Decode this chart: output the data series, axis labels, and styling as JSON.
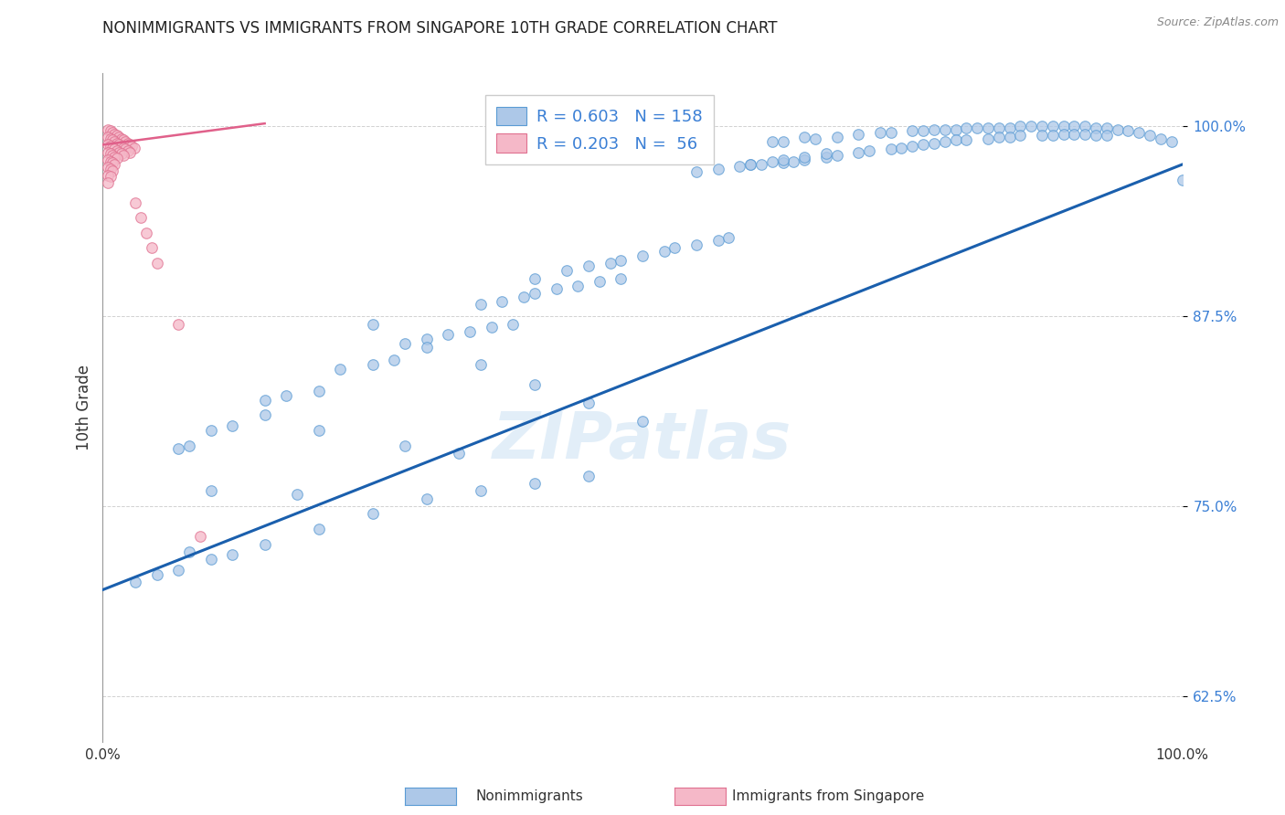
{
  "title": "NONIMMIGRANTS VS IMMIGRANTS FROM SINGAPORE 10TH GRADE CORRELATION CHART",
  "source": "Source: ZipAtlas.com",
  "ylabel": "10th Grade",
  "blue_R": 0.603,
  "blue_N": 158,
  "pink_R": 0.203,
  "pink_N": 56,
  "blue_color": "#adc8e8",
  "blue_line_color": "#1a5fad",
  "pink_color": "#f5b8c8",
  "pink_line_color": "#e0608a",
  "blue_edge_color": "#5a9bd4",
  "pink_edge_color": "#e07090",
  "watermark": "ZIPatlas",
  "xlim": [
    0.0,
    1.0
  ],
  "ylim": [
    0.595,
    1.035
  ],
  "yticks": [
    0.625,
    0.75,
    0.875,
    1.0
  ],
  "ytick_labels": [
    "62.5%",
    "75.0%",
    "87.5%",
    "100.0%"
  ],
  "blue_trend_x": [
    0.0,
    1.0
  ],
  "blue_trend_y": [
    0.695,
    0.975
  ],
  "pink_trend_x": [
    0.0,
    0.15
  ],
  "pink_trend_y": [
    0.988,
    1.002
  ],
  "title_fontsize": 12,
  "axis_label_fontsize": 12,
  "tick_fontsize": 11,
  "watermark_fontsize": 52,
  "marker_size": 70,
  "blue_x": [
    0.62,
    0.63,
    0.65,
    0.66,
    0.68,
    0.7,
    0.72,
    0.73,
    0.75,
    0.76,
    0.77,
    0.78,
    0.79,
    0.8,
    0.81,
    0.82,
    0.83,
    0.84,
    0.85,
    0.86,
    0.87,
    0.88,
    0.89,
    0.9,
    0.91,
    0.92,
    0.93,
    0.94,
    0.95,
    0.96,
    0.97,
    0.98,
    0.99,
    1.0,
    0.6,
    0.61,
    0.63,
    0.64,
    0.65,
    0.67,
    0.68,
    0.7,
    0.71,
    0.73,
    0.74,
    0.75,
    0.76,
    0.77,
    0.78,
    0.79,
    0.8,
    0.82,
    0.83,
    0.84,
    0.85,
    0.87,
    0.88,
    0.89,
    0.9,
    0.91,
    0.92,
    0.93,
    0.55,
    0.57,
    0.59,
    0.6,
    0.62,
    0.63,
    0.65,
    0.67,
    0.4,
    0.43,
    0.45,
    0.47,
    0.48,
    0.5,
    0.52,
    0.53,
    0.55,
    0.57,
    0.58,
    0.35,
    0.37,
    0.39,
    0.4,
    0.42,
    0.44,
    0.46,
    0.48,
    0.28,
    0.3,
    0.32,
    0.34,
    0.36,
    0.38,
    0.22,
    0.25,
    0.27,
    0.15,
    0.17,
    0.2,
    0.1,
    0.12,
    0.07,
    0.08,
    0.25,
    0.3,
    0.35,
    0.4,
    0.45,
    0.5,
    0.15,
    0.2,
    0.28,
    0.33,
    0.1,
    0.18,
    0.08,
    0.12,
    0.03,
    0.05,
    0.07,
    0.1,
    0.15,
    0.2,
    0.25,
    0.3,
    0.35,
    0.4,
    0.45
  ],
  "blue_y": [
    0.99,
    0.99,
    0.993,
    0.992,
    0.993,
    0.995,
    0.996,
    0.996,
    0.997,
    0.997,
    0.998,
    0.998,
    0.998,
    0.999,
    0.999,
    0.999,
    0.999,
    0.999,
    1.0,
    1.0,
    1.0,
    1.0,
    1.0,
    1.0,
    1.0,
    0.999,
    0.999,
    0.998,
    0.997,
    0.996,
    0.994,
    0.992,
    0.99,
    0.965,
    0.975,
    0.975,
    0.976,
    0.977,
    0.978,
    0.98,
    0.981,
    0.983,
    0.984,
    0.985,
    0.986,
    0.987,
    0.988,
    0.989,
    0.99,
    0.991,
    0.991,
    0.992,
    0.993,
    0.993,
    0.994,
    0.994,
    0.994,
    0.995,
    0.995,
    0.995,
    0.994,
    0.994,
    0.97,
    0.972,
    0.974,
    0.975,
    0.977,
    0.978,
    0.98,
    0.982,
    0.9,
    0.905,
    0.908,
    0.91,
    0.912,
    0.915,
    0.918,
    0.92,
    0.922,
    0.925,
    0.927,
    0.883,
    0.885,
    0.888,
    0.89,
    0.893,
    0.895,
    0.898,
    0.9,
    0.857,
    0.86,
    0.863,
    0.865,
    0.868,
    0.87,
    0.84,
    0.843,
    0.846,
    0.82,
    0.823,
    0.826,
    0.8,
    0.803,
    0.788,
    0.79,
    0.87,
    0.855,
    0.843,
    0.83,
    0.818,
    0.806,
    0.81,
    0.8,
    0.79,
    0.785,
    0.76,
    0.758,
    0.72,
    0.718,
    0.7,
    0.705,
    0.708,
    0.715,
    0.725,
    0.735,
    0.745,
    0.755,
    0.76,
    0.765,
    0.77
  ],
  "pink_x": [
    0.005,
    0.007,
    0.009,
    0.011,
    0.013,
    0.015,
    0.017,
    0.019,
    0.021,
    0.023,
    0.025,
    0.027,
    0.029,
    0.005,
    0.007,
    0.009,
    0.011,
    0.013,
    0.015,
    0.017,
    0.019,
    0.021,
    0.023,
    0.025,
    0.005,
    0.007,
    0.009,
    0.011,
    0.013,
    0.015,
    0.017,
    0.019,
    0.005,
    0.007,
    0.009,
    0.011,
    0.013,
    0.005,
    0.007,
    0.009,
    0.011,
    0.005,
    0.007,
    0.009,
    0.005,
    0.007,
    0.005,
    0.03,
    0.035,
    0.04,
    0.045,
    0.05,
    0.07,
    0.09
  ],
  "pink_y": [
    0.998,
    0.997,
    0.996,
    0.995,
    0.994,
    0.993,
    0.992,
    0.991,
    0.99,
    0.989,
    0.988,
    0.987,
    0.986,
    0.993,
    0.992,
    0.991,
    0.99,
    0.989,
    0.988,
    0.987,
    0.986,
    0.985,
    0.984,
    0.983,
    0.988,
    0.987,
    0.986,
    0.985,
    0.984,
    0.983,
    0.982,
    0.981,
    0.983,
    0.982,
    0.981,
    0.98,
    0.979,
    0.978,
    0.977,
    0.976,
    0.975,
    0.973,
    0.972,
    0.971,
    0.968,
    0.967,
    0.963,
    0.95,
    0.94,
    0.93,
    0.92,
    0.91,
    0.87,
    0.73
  ]
}
